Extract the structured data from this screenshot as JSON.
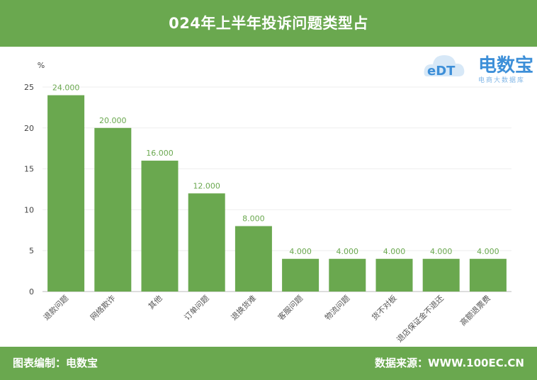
{
  "header": {
    "title": "024年上半年投诉问题类型占"
  },
  "logo": {
    "brand": "电数宝",
    "tagline": "电商大数据库",
    "mark": "eDT"
  },
  "footer": {
    "left": "图表编制：电数宝",
    "right": "数据来源：WWW.100EC.CN"
  },
  "colors": {
    "accent": "#6aa84f",
    "bar": "#6aa84f",
    "logo": "#3d8fd8"
  },
  "chart_data": {
    "type": "bar",
    "ylabel": "%",
    "ylim": [
      0,
      25
    ],
    "yticks": [
      0,
      5,
      10,
      15,
      20,
      25
    ],
    "categories": [
      "退款问题",
      "网络欺诈",
      "其他",
      "订单问题",
      "退换货难",
      "客服问题",
      "物流问题",
      "货不对板",
      "退店保证金不退还",
      "高额退票费"
    ],
    "values": [
      24,
      20,
      16,
      12,
      8,
      4,
      4,
      4,
      4,
      4
    ],
    "value_labels": [
      "24.000",
      "20.000",
      "16.000",
      "12.000",
      "8.000",
      "4.000",
      "4.000",
      "4.000",
      "4.000",
      "4.000"
    ],
    "grid": true,
    "legend": "none"
  }
}
